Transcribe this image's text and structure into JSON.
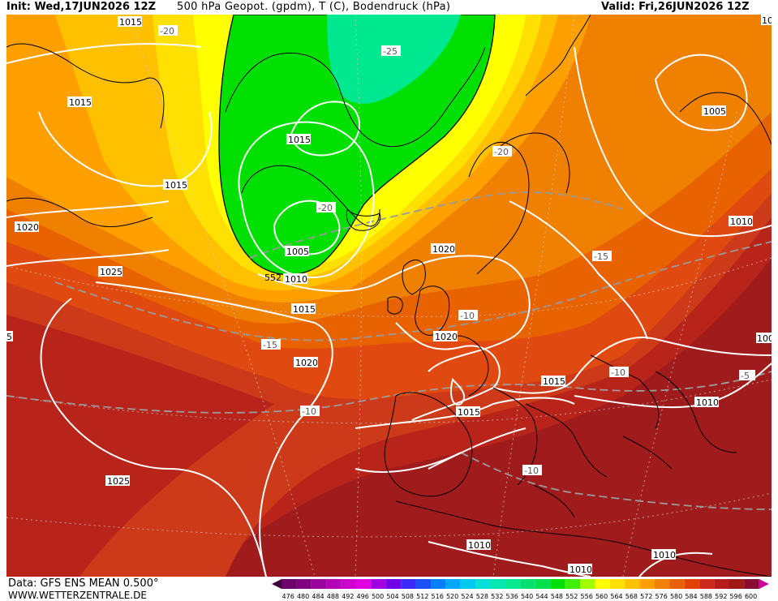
{
  "header": {
    "init": "Init: Wed,17JUN2026 12Z",
    "title": "500 hPa Geopot. (gpdm), T (C), Bodendruck (hPa)",
    "valid": "Valid: Fri,26JUN2026 12Z"
  },
  "footer": {
    "data_source": "Data: GFS ENS MEAN 0.500°",
    "website": "WWW.WETTERZENTRALE.DE"
  },
  "colorbar": {
    "values": [
      "476",
      "480",
      "484",
      "488",
      "492",
      "496",
      "500",
      "504",
      "508",
      "512",
      "516",
      "520",
      "524",
      "528",
      "532",
      "536",
      "540",
      "544",
      "548",
      "552",
      "556",
      "560",
      "564",
      "568",
      "572",
      "576",
      "580",
      "584",
      "588",
      "592",
      "596",
      "600"
    ],
    "colors": [
      "#6a006a",
      "#800080",
      "#9a009a",
      "#b400b4",
      "#cc00cc",
      "#e000e0",
      "#a000e0",
      "#7000e8",
      "#3a2aff",
      "#1c50ff",
      "#0080ff",
      "#00a8ff",
      "#00c8f0",
      "#00e0d8",
      "#00e8b0",
      "#00e890",
      "#00e070",
      "#00e050",
      "#00e000",
      "#40ee00",
      "#a0ff00",
      "#ffff00",
      "#ffe000",
      "#ffc000",
      "#ffa000",
      "#f08000",
      "#e86000",
      "#e04000",
      "#cc2a1a",
      "#b81c1c",
      "#a01818",
      "#880c30",
      "#d0009a"
    ]
  },
  "pressure_labels": [
    "1015",
    "1015",
    "1015",
    "1015",
    "1015",
    "1015",
    "1015",
    "1015",
    "1005",
    "1005",
    "1010",
    "1010",
    "1010",
    "1010",
    "1010",
    "1010",
    "1020",
    "1020",
    "1020",
    "1020",
    "1025",
    "1025",
    "5",
    "10",
    "100"
  ],
  "temperature_labels": [
    "-20",
    "-25",
    "-20",
    "-20",
    "-15",
    "-15",
    "-10",
    "-10",
    "-10",
    "-10",
    "-5"
  ],
  "geopotential_labels": [
    "552"
  ],
  "colors": {
    "green_core": "#00e050",
    "yellow": "#ffff00",
    "orange": "#f08000",
    "red": "#a01c1c",
    "contour_white": "#ffffff",
    "coast_black": "#000000"
  }
}
